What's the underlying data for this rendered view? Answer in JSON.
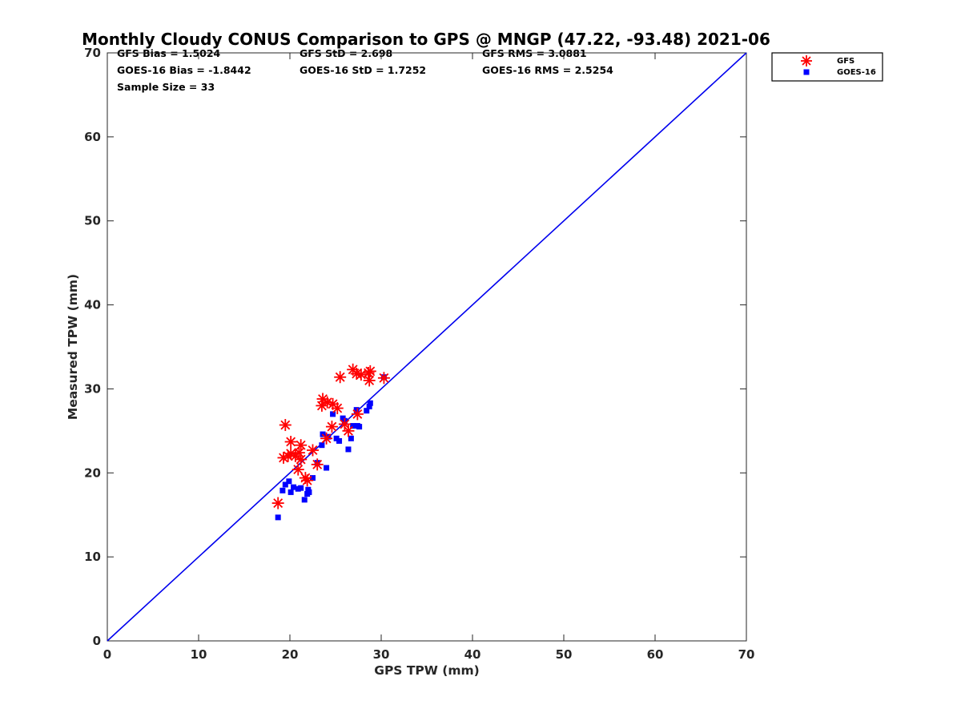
{
  "chart_data": {
    "type": "scatter",
    "title": "Monthly Cloudy CONUS Comparison to GPS @ MNGP (47.22, -93.48) 2021-06",
    "xlabel": "GPS TPW (mm)",
    "ylabel": "Measured TPW (mm)",
    "xlim": [
      0,
      70
    ],
    "ylim": [
      0,
      70
    ],
    "xticks": [
      "0",
      "10",
      "20",
      "30",
      "40",
      "50",
      "60",
      "70"
    ],
    "yticks": [
      "0",
      "10",
      "20",
      "30",
      "40",
      "50",
      "60",
      "70"
    ],
    "grid": false,
    "legend_position": "outside-top-right",
    "stats": [
      [
        "GFS Bias = 1.5024",
        "GFS StD = 2.698",
        "GFS RMS = 3.0881"
      ],
      [
        "GOES-16 Bias = -1.8442",
        "GOES-16 StD = 1.7252",
        "GOES-16 RMS = 2.5254"
      ],
      [
        "Sample Size = 33",
        "",
        ""
      ]
    ],
    "reference_line": {
      "x": [
        0,
        70
      ],
      "y": [
        0,
        70
      ],
      "color": "#0000ee"
    },
    "series": [
      {
        "name": "GFS",
        "marker": "asterisk",
        "color": "#ff0000",
        "points": [
          [
            18.7,
            16.4
          ],
          [
            19.3,
            21.8
          ],
          [
            19.5,
            25.7
          ],
          [
            19.8,
            22.0
          ],
          [
            20.1,
            22.3
          ],
          [
            20.1,
            23.7
          ],
          [
            20.6,
            22.0
          ],
          [
            20.9,
            20.4
          ],
          [
            21.0,
            22.4
          ],
          [
            21.2,
            23.3
          ],
          [
            21.2,
            21.6
          ],
          [
            21.7,
            19.4
          ],
          [
            21.9,
            19.1
          ],
          [
            22.5,
            22.7
          ],
          [
            23.0,
            21.0
          ],
          [
            23.5,
            28.0
          ],
          [
            23.6,
            28.8
          ],
          [
            24.0,
            24.1
          ],
          [
            24.1,
            28.4
          ],
          [
            24.6,
            25.5
          ],
          [
            24.7,
            28.2
          ],
          [
            25.2,
            27.7
          ],
          [
            25.5,
            31.4
          ],
          [
            26.4,
            25.0
          ],
          [
            26.9,
            32.3
          ],
          [
            27.3,
            31.8
          ],
          [
            27.4,
            27.0
          ],
          [
            27.8,
            31.7
          ],
          [
            28.6,
            31.9
          ],
          [
            28.7,
            31.0
          ],
          [
            28.8,
            32.1
          ],
          [
            30.3,
            31.3
          ],
          [
            26.0,
            25.8
          ]
        ]
      },
      {
        "name": "GOES-16",
        "marker": "square",
        "color": "#0000ff",
        "points": [
          [
            18.7,
            14.7
          ],
          [
            19.2,
            17.9
          ],
          [
            19.5,
            18.6
          ],
          [
            19.9,
            19.0
          ],
          [
            20.1,
            17.7
          ],
          [
            20.4,
            18.3
          ],
          [
            20.9,
            18.1
          ],
          [
            21.2,
            18.2
          ],
          [
            21.6,
            16.8
          ],
          [
            21.9,
            17.5
          ],
          [
            22.0,
            18.0
          ],
          [
            22.5,
            19.4
          ],
          [
            23.0,
            21.2
          ],
          [
            23.5,
            23.3
          ],
          [
            23.6,
            24.6
          ],
          [
            24.0,
            20.6
          ],
          [
            24.2,
            24.3
          ],
          [
            24.7,
            27.0
          ],
          [
            25.1,
            24.1
          ],
          [
            25.4,
            23.8
          ],
          [
            25.8,
            26.5
          ],
          [
            26.4,
            22.8
          ],
          [
            26.7,
            24.1
          ],
          [
            26.9,
            25.6
          ],
          [
            27.3,
            27.5
          ],
          [
            27.4,
            25.6
          ],
          [
            27.6,
            25.5
          ],
          [
            28.4,
            27.4
          ],
          [
            28.7,
            27.9
          ],
          [
            28.8,
            28.3
          ],
          [
            30.3,
            31.4
          ],
          [
            26.0,
            26.2
          ],
          [
            22.1,
            17.7
          ]
        ]
      }
    ]
  }
}
